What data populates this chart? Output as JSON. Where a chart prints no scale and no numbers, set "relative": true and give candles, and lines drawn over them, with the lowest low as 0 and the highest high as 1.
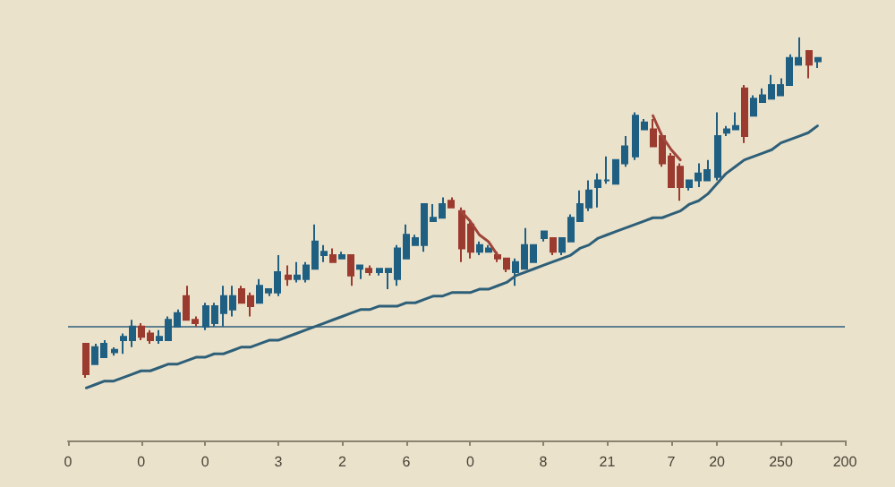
{
  "chart_data": {
    "type": "candlestick",
    "relative": true,
    "categories": [
      "0",
      null,
      null,
      null,
      null,
      null,
      null,
      null,
      "0",
      null,
      null,
      null,
      null,
      null,
      null,
      "0",
      null,
      null,
      null,
      null,
      null,
      null,
      null,
      "3",
      null,
      null,
      null,
      null,
      null,
      null,
      "2",
      null,
      null,
      null,
      null,
      null,
      null,
      "6",
      null,
      null,
      null,
      null,
      null,
      null,
      "0",
      null,
      null,
      null,
      null,
      null,
      null,
      null,
      "8",
      null,
      null,
      null,
      null,
      null,
      null,
      "21",
      null,
      null,
      null,
      null,
      null,
      null,
      "7",
      null,
      null,
      null,
      null,
      "20",
      null,
      null,
      null,
      null,
      null,
      null,
      "250",
      null,
      null,
      null,
      null,
      null,
      null,
      "200"
    ],
    "ohlc": [
      null,
      null,
      [
        0.1,
        0.1,
        0.0,
        0.01
      ],
      [
        0.04,
        0.1,
        0.04,
        0.09
      ],
      [
        0.06,
        0.11,
        0.06,
        0.1
      ],
      [
        0.075,
        0.089,
        0.065,
        0.082
      ],
      [
        0.11,
        0.13,
        0.07,
        0.12
      ],
      [
        0.11,
        0.17,
        0.09,
        0.15
      ],
      [
        0.15,
        0.16,
        0.11,
        0.12
      ],
      [
        0.13,
        0.14,
        0.1,
        0.11
      ],
      [
        0.11,
        0.14,
        0.1,
        0.12
      ],
      [
        0.11,
        0.18,
        0.11,
        0.17
      ],
      [
        0.15,
        0.2,
        0.15,
        0.19
      ],
      [
        0.24,
        0.27,
        0.17,
        0.17
      ],
      [
        0.17,
        0.18,
        0.15,
        0.16
      ],
      [
        0.15,
        0.22,
        0.14,
        0.21
      ],
      [
        0.16,
        0.22,
        0.15,
        0.21
      ],
      [
        0.19,
        0.27,
        0.15,
        0.24
      ],
      [
        0.2,
        0.27,
        0.18,
        0.24
      ],
      [
        0.26,
        0.27,
        0.22,
        0.22
      ],
      [
        0.24,
        0.25,
        0.18,
        0.21
      ],
      [
        0.22,
        0.29,
        0.22,
        0.27
      ],
      [
        0.25,
        0.26,
        0.24,
        0.26
      ],
      [
        0.25,
        0.36,
        0.24,
        0.31
      ],
      [
        0.3,
        0.33,
        0.27,
        0.29
      ],
      [
        0.29,
        0.34,
        0.28,
        0.3
      ],
      [
        0.29,
        0.34,
        0.28,
        0.33
      ],
      [
        0.32,
        0.45,
        0.32,
        0.4
      ],
      [
        0.36,
        0.39,
        0.34,
        0.37
      ],
      [
        0.36,
        0.38,
        0.34,
        0.34
      ],
      [
        0.35,
        0.37,
        0.35,
        0.36
      ],
      [
        0.36,
        0.36,
        0.27,
        0.3
      ],
      [
        0.32,
        0.33,
        0.29,
        0.33
      ],
      [
        0.32,
        0.33,
        0.3,
        0.31
      ],
      [
        0.31,
        0.32,
        0.3,
        0.32
      ],
      [
        0.31,
        0.32,
        0.26,
        0.32
      ],
      [
        0.29,
        0.39,
        0.27,
        0.38
      ],
      [
        0.35,
        0.45,
        0.35,
        0.42
      ],
      [
        0.39,
        0.42,
        0.39,
        0.41
      ],
      [
        0.39,
        0.51,
        0.37,
        0.51
      ],
      [
        0.46,
        0.51,
        0.46,
        0.47
      ],
      [
        0.47,
        0.53,
        0.47,
        0.51
      ],
      [
        0.52,
        0.53,
        0.5,
        0.5
      ],
      [
        0.49,
        0.5,
        0.34,
        0.38
      ],
      [
        0.45,
        0.46,
        0.35,
        0.37
      ],
      [
        0.37,
        0.4,
        0.36,
        0.39
      ],
      [
        0.37,
        0.39,
        0.37,
        0.38
      ],
      [
        0.36,
        0.37,
        0.34,
        0.35
      ],
      [
        0.35,
        0.35,
        0.31,
        0.32
      ],
      [
        0.31,
        0.35,
        0.27,
        0.34
      ],
      [
        0.32,
        0.44,
        0.32,
        0.39
      ],
      [
        0.34,
        0.39,
        0.34,
        0.39
      ],
      [
        0.41,
        0.43,
        0.4,
        0.43
      ],
      [
        0.41,
        0.41,
        0.36,
        0.37
      ],
      [
        0.37,
        0.41,
        0.36,
        0.41
      ],
      [
        0.4,
        0.48,
        0.4,
        0.47
      ],
      [
        0.46,
        0.55,
        0.46,
        0.51
      ],
      [
        0.5,
        0.58,
        0.49,
        0.55
      ],
      [
        0.56,
        0.6,
        0.5,
        0.58
      ],
      [
        0.58,
        0.65,
        0.57,
        0.58
      ],
      [
        0.57,
        0.64,
        0.57,
        0.64
      ],
      [
        0.63,
        0.71,
        0.62,
        0.68
      ],
      [
        0.65,
        0.78,
        0.64,
        0.77
      ],
      [
        0.73,
        0.76,
        0.73,
        0.75
      ],
      [
        0.73,
        0.76,
        0.68,
        0.68
      ],
      [
        0.71,
        0.72,
        0.62,
        0.63
      ],
      [
        0.65,
        0.66,
        0.56,
        0.56
      ],
      [
        0.62,
        0.63,
        0.52,
        0.56
      ],
      [
        0.56,
        0.58,
        0.55,
        0.58
      ],
      [
        0.58,
        0.63,
        0.56,
        0.6
      ],
      [
        0.58,
        0.64,
        0.58,
        0.61
      ],
      [
        0.59,
        0.78,
        0.58,
        0.71
      ],
      [
        0.72,
        0.74,
        0.71,
        0.73
      ],
      [
        0.73,
        0.78,
        0.73,
        0.74
      ],
      [
        0.85,
        0.86,
        0.69,
        0.71
      ],
      [
        0.77,
        0.83,
        0.77,
        0.82
      ],
      [
        0.81,
        0.85,
        0.81,
        0.83
      ],
      [
        0.82,
        0.89,
        0.82,
        0.86
      ],
      [
        0.83,
        0.88,
        0.83,
        0.86
      ],
      [
        0.86,
        0.95,
        0.86,
        0.94
      ],
      [
        0.92,
        1.0,
        0.92,
        0.94
      ],
      [
        0.96,
        0.96,
        0.88,
        0.92
      ],
      [
        0.93,
        0.94,
        0.91,
        0.94
      ],
      null,
      null,
      null
    ],
    "colors": [
      null,
      null,
      "#9b3a2e",
      "#1f5f82",
      "#1f5f82",
      "#1f5f82",
      "#1f5f82",
      "#1f5f82",
      "#9b3a2e",
      "#9b3a2e",
      "#1f5f82",
      "#1f5f82",
      "#1f5f82",
      "#9b3a2e",
      "#9b3a2e",
      "#1f5f82",
      "#1f5f82",
      "#1f5f82",
      "#1f5f82",
      "#9b3a2e",
      "#9b3a2e",
      "#1f5f82",
      "#1f5f82",
      "#1f5f82",
      "#9b3a2e",
      "#1f5f82",
      "#1f5f82",
      "#1f5f82",
      "#1f5f82",
      "#9b3a2e",
      "#1f5f82",
      "#9b3a2e",
      "#1f5f82",
      "#9b3a2e",
      "#1f5f82",
      "#1f5f82",
      "#1f5f82",
      "#1f5f82",
      "#1f5f82",
      "#1f5f82",
      "#1f5f82",
      "#1f5f82",
      "#9b3a2e",
      "#9b3a2e",
      "#9b3a2e",
      "#1f5f82",
      "#1f5f82",
      "#9b3a2e",
      "#9b3a2e",
      "#1f5f82",
      "#1f5f82",
      "#1f5f82",
      "#1f5f82",
      "#9b3a2e",
      "#1f5f82",
      "#1f5f82",
      "#1f5f82",
      "#1f5f82",
      "#1f5f82",
      "#1f5f82",
      "#1f5f82",
      "#1f5f82",
      "#1f5f82",
      "#1f5f82",
      "#9b3a2e",
      "#9b3a2e",
      "#9b3a2e",
      "#9b3a2e",
      "#1f5f82",
      "#1f5f82",
      "#1f5f82",
      "#1f5f82",
      "#1f5f82",
      "#1f5f82",
      "#9b3a2e",
      "#1f5f82",
      "#1f5f82",
      "#1f5f82",
      "#1f5f82",
      "#1f5f82",
      "#1f5f82",
      "#9b3a2e",
      "#1f5f82",
      null,
      null,
      null
    ],
    "series": [
      {
        "type": "line",
        "color": "#2e5f78",
        "values": [
          null,
          null,
          -0.03,
          -0.02,
          -0.01,
          -0.01,
          0.0,
          0.01,
          0.02,
          0.02,
          0.03,
          0.04,
          0.04,
          0.05,
          0.06,
          0.06,
          0.07,
          0.07,
          0.08,
          0.09,
          0.09,
          0.1,
          0.11,
          0.11,
          0.12,
          0.13,
          0.14,
          0.15,
          0.16,
          0.17,
          0.18,
          0.19,
          0.2,
          0.2,
          0.21,
          0.21,
          0.21,
          0.22,
          0.22,
          0.23,
          0.24,
          0.24,
          0.25,
          0.25,
          0.25,
          0.26,
          0.26,
          0.27,
          0.28,
          0.3,
          0.31,
          0.32,
          0.33,
          0.34,
          0.35,
          0.36,
          0.38,
          0.39,
          0.41,
          0.42,
          0.43,
          0.44,
          0.45,
          0.46,
          0.47,
          0.47,
          0.48,
          0.49,
          0.51,
          0.52,
          0.54,
          0.57,
          0.6,
          0.62,
          0.64,
          0.65,
          0.66,
          0.67,
          0.69,
          0.7,
          0.71,
          0.72,
          0.74,
          null,
          null,
          null
        ]
      },
      {
        "type": "line",
        "color": "#a0453a",
        "values": [
          null,
          null,
          null,
          null,
          null,
          null,
          null,
          null,
          null,
          null,
          null,
          null,
          null,
          null,
          null,
          null,
          null,
          null,
          null,
          null,
          null,
          null,
          null,
          null,
          null,
          null,
          null,
          null,
          null,
          null,
          null,
          null,
          null,
          null,
          null,
          null,
          null,
          null,
          null,
          null,
          null,
          null,
          null,
          0.49,
          0.46,
          0.42,
          0.4,
          0.36,
          null,
          null,
          null,
          null,
          null,
          null,
          null,
          null,
          null,
          null,
          null,
          null,
          null,
          null,
          null,
          null,
          null,
          null,
          null,
          null,
          null,
          null,
          null,
          null,
          null,
          null,
          null,
          null,
          null,
          null,
          null,
          null,
          null,
          null,
          null,
          null,
          null,
          null
        ]
      },
      {
        "type": "line",
        "color": "#a0453a",
        "values": [
          null,
          null,
          null,
          null,
          null,
          null,
          null,
          null,
          null,
          null,
          null,
          null,
          null,
          null,
          null,
          null,
          null,
          null,
          null,
          null,
          null,
          null,
          null,
          null,
          null,
          null,
          null,
          null,
          null,
          null,
          null,
          null,
          null,
          null,
          null,
          null,
          null,
          null,
          null,
          null,
          null,
          null,
          null,
          null,
          null,
          null,
          null,
          null,
          null,
          null,
          null,
          null,
          null,
          null,
          null,
          null,
          null,
          null,
          null,
          null,
          null,
          null,
          null,
          null,
          0.77,
          0.71,
          0.67,
          0.64,
          null,
          null,
          null,
          null,
          null,
          null,
          null,
          null,
          null,
          null,
          null,
          null,
          null,
          null,
          null,
          null,
          null,
          null
        ]
      }
    ],
    "ref_lines": [
      {
        "axis": "y",
        "value": 0.15,
        "color": "#5e7f8e"
      }
    ]
  }
}
